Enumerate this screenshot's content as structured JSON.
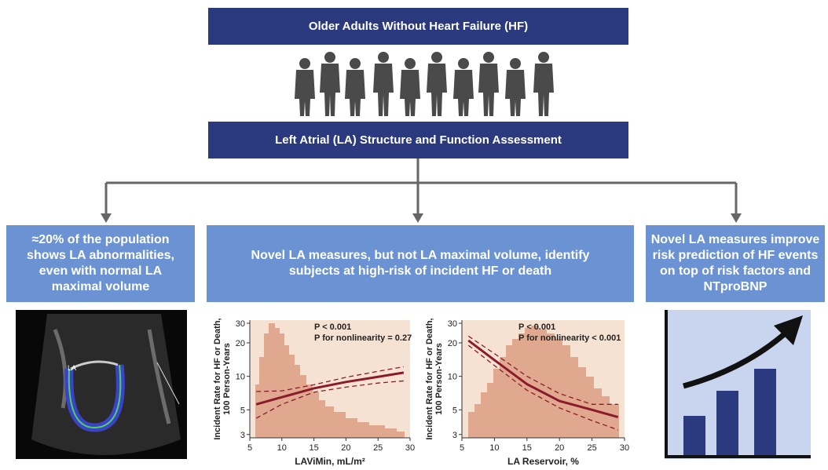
{
  "header": {
    "title": "Older Adults Without Heart Failure (HF)",
    "subtitle": "Left Atrial (LA) Structure and Function Assessment"
  },
  "boxes": [
    {
      "lines": [
        "≈20% of the population",
        "shows LA abnormalities,",
        "even with normal LA",
        "maximal volume"
      ]
    },
    {
      "lines": [
        "Novel LA measures, but not LA maximal volume, identify",
        "subjects at high-risk of incident HF or death"
      ]
    },
    {
      "lines": [
        "Novel LA measures improve",
        "risk prediction of HF events",
        "on top of risk factors and",
        "NTproBNP"
      ]
    }
  ],
  "echo_label": "LA",
  "chart_data": [
    {
      "type": "line",
      "xlabel": "LAViMin, mL/m²",
      "ylabel": [
        "Incident Rate for HF or Death,",
        "100 Person-Years"
      ],
      "annotations": [
        "P < 0.001",
        "P for nonlinearity = 0.27"
      ],
      "x": [
        6,
        10,
        15,
        20,
        25,
        29
      ],
      "series": [
        {
          "color": "#8b1a2b",
          "values": [
            5.6,
            6.5,
            7.8,
            8.9,
            9.9,
            10.8
          ]
        },
        {
          "color": "#8b1a2b",
          "dash": true,
          "values": [
            7.3,
            7.4,
            8.4,
            9.8,
            11.1,
            12.2
          ]
        },
        {
          "color": "#8b1a2b",
          "dash": true,
          "values": [
            4.2,
            5.6,
            7.2,
            8.0,
            8.7,
            9.1
          ]
        }
      ],
      "xlim": [
        5,
        30
      ],
      "ylim": [
        2.8,
        32
      ],
      "xticks": [
        5,
        10,
        15,
        20,
        25,
        30
      ],
      "yticks": [
        3,
        5,
        10,
        20,
        30
      ],
      "log_y": true
    },
    {
      "type": "line",
      "xlabel": "LA Reservoir, %",
      "ylabel": [
        "Incident Rate for HF or Death,",
        "100 Person-Years"
      ],
      "annotations": [
        "P < 0.001",
        "P for nonlinearity < 0.001"
      ],
      "x": [
        6,
        10,
        15,
        20,
        25,
        29
      ],
      "series": [
        {
          "color": "#8b1a2b",
          "values": [
            21,
            14,
            8.5,
            6,
            5,
            4.3
          ]
        },
        {
          "color": "#8b1a2b",
          "dash": true,
          "values": [
            23,
            16,
            10,
            7,
            5.6,
            5.6
          ]
        },
        {
          "color": "#8b1a2b",
          "dash": true,
          "values": [
            19,
            12.5,
            7.5,
            5.2,
            4,
            3.3
          ]
        }
      ],
      "xlim": [
        5,
        30
      ],
      "ylim": [
        2.8,
        32
      ],
      "xticks": [
        5,
        10,
        15,
        20,
        25,
        30
      ],
      "yticks": [
        3,
        5,
        10,
        20,
        30
      ],
      "log_y": true
    }
  ]
}
